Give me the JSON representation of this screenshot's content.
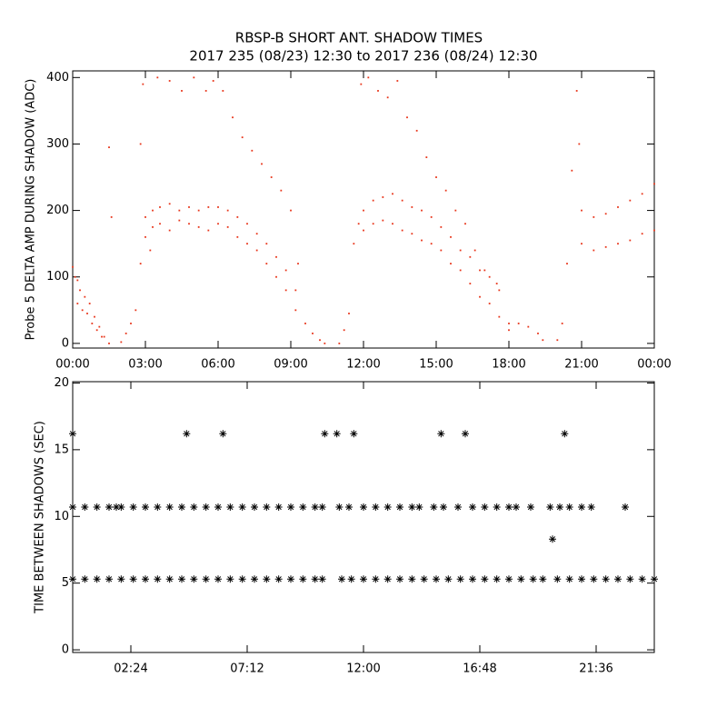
{
  "chart_data": [
    {
      "type": "scatter",
      "title": "RBSP-B SHORT ANT. SHADOW TIMES",
      "subtitle": "2017 235 (08/23) 12:30 to 2017 236 (08/24) 12:30",
      "ylabel": "Probe 5 DELTA AMP DURING SHADOW (ADC)",
      "color": "#e8351a",
      "xlim": [
        0,
        24
      ],
      "ylim": [
        -7,
        410
      ],
      "xticks": [
        {
          "value": 0,
          "label": "00:00"
        },
        {
          "value": 3,
          "label": "03:00"
        },
        {
          "value": 6,
          "label": "06:00"
        },
        {
          "value": 9,
          "label": "09:00"
        },
        {
          "value": 12,
          "label": "12:00"
        },
        {
          "value": 15,
          "label": "15:00"
        },
        {
          "value": 18,
          "label": "18:00"
        },
        {
          "value": 21,
          "label": "21:00"
        },
        {
          "value": 24,
          "label": "00:00"
        }
      ],
      "yticks": [
        0,
        100,
        200,
        300,
        400
      ],
      "x": [
        0,
        0.1,
        0.2,
        0.3,
        0.5,
        0.7,
        0.9,
        1.1,
        1.3,
        1.5,
        0.2,
        0.4,
        0.6,
        0.8,
        1.0,
        1.2,
        2.0,
        2.2,
        2.4,
        2.6,
        2.8,
        3.0,
        3.0,
        3.3,
        3.3,
        3.6,
        3.6,
        4.0,
        4.0,
        4.4,
        4.4,
        4.8,
        4.8,
        5.2,
        5.2,
        5.6,
        5.6,
        6.0,
        6.0,
        6.4,
        6.4,
        6.8,
        6.8,
        7.2,
        7.2,
        7.6,
        7.6,
        8.0,
        8.0,
        8.4,
        8.4,
        8.8,
        8.8,
        9.2,
        9.2,
        9.6,
        9.9,
        10.2,
        10.4,
        2.8,
        2.9,
        3.2,
        3.5,
        4.0,
        4.5,
        5.0,
        5.5,
        5.8,
        6.2,
        6.6,
        7.0,
        7.4,
        7.8,
        8.2,
        8.6,
        9.0,
        9.3,
        1.5,
        1.6,
        11.0,
        11.2,
        11.4,
        11.6,
        11.8,
        12.0,
        12.0,
        12.4,
        12.4,
        12.8,
        12.8,
        13.2,
        13.2,
        13.6,
        13.6,
        14.0,
        14.0,
        14.4,
        14.4,
        14.8,
        14.8,
        15.2,
        15.2,
        15.6,
        15.6,
        16.0,
        16.0,
        16.4,
        16.4,
        16.8,
        16.8,
        17.2,
        17.2,
        17.6,
        17.6,
        18.0,
        18.0,
        18.4,
        18.8,
        19.2,
        19.4,
        11.9,
        12.2,
        12.6,
        13.0,
        13.4,
        13.8,
        14.2,
        14.6,
        15.0,
        15.4,
        15.8,
        16.2,
        16.6,
        17.0,
        17.5,
        20.0,
        20.2,
        20.4,
        20.6,
        20.8,
        20.9,
        21.0,
        21.0,
        21.5,
        21.5,
        22.0,
        22.0,
        22.5,
        22.5,
        23.0,
        23.0,
        23.5,
        23.5,
        24.0,
        24.0
      ],
      "values": [
        115,
        100,
        95,
        80,
        70,
        60,
        40,
        25,
        10,
        0,
        60,
        50,
        45,
        30,
        20,
        10,
        2,
        15,
        30,
        50,
        120,
        160,
        190,
        175,
        200,
        180,
        205,
        170,
        210,
        185,
        200,
        180,
        205,
        175,
        200,
        170,
        205,
        180,
        205,
        175,
        200,
        160,
        190,
        150,
        180,
        140,
        165,
        120,
        150,
        100,
        130,
        80,
        110,
        50,
        80,
        30,
        15,
        5,
        0,
        300,
        390,
        140,
        400,
        395,
        380,
        400,
        380,
        395,
        380,
        340,
        310,
        290,
        270,
        250,
        230,
        200,
        120,
        295,
        190,
        0,
        20,
        45,
        150,
        180,
        170,
        200,
        180,
        215,
        185,
        220,
        180,
        225,
        170,
        215,
        165,
        205,
        155,
        200,
        150,
        190,
        140,
        175,
        120,
        160,
        110,
        140,
        90,
        130,
        70,
        110,
        60,
        100,
        40,
        80,
        30,
        20,
        30,
        25,
        15,
        5,
        390,
        400,
        380,
        370,
        395,
        340,
        320,
        280,
        250,
        230,
        200,
        180,
        140,
        110,
        90,
        5,
        30,
        120,
        260,
        380,
        300,
        200,
        150,
        140,
        190,
        145,
        195,
        150,
        205,
        155,
        215,
        165,
        225,
        170,
        240
      ]
    },
    {
      "type": "asterisk",
      "ylabel": "TIME BETWEEN SHADOWS (SEC)",
      "color": "#000000",
      "xlim": [
        0,
        24
      ],
      "ylim": [
        -0.2,
        20.1
      ],
      "xticks": [
        {
          "value": 2.4,
          "label": "02:24"
        },
        {
          "value": 7.2,
          "label": "07:12"
        },
        {
          "value": 12,
          "label": "12:00"
        },
        {
          "value": 16.8,
          "label": "16:48"
        },
        {
          "value": 21.6,
          "label": "21:36"
        }
      ],
      "yticks": [
        0,
        5,
        10,
        15,
        20
      ],
      "x": [
        0,
        0.5,
        1,
        1.5,
        2,
        2.5,
        3,
        3.5,
        4,
        4.5,
        5,
        5.5,
        6,
        6.5,
        7,
        7.5,
        8,
        8.5,
        9,
        9.5,
        10,
        10.3,
        11.1,
        11.5,
        12,
        12.5,
        13,
        13.5,
        14,
        14.5,
        15,
        15.5,
        16,
        16.5,
        17,
        17.5,
        18,
        18.5,
        19,
        19.4,
        20,
        20.5,
        21,
        21.5,
        22,
        22.5,
        23,
        23.5,
        24,
        0,
        0.5,
        1,
        1.5,
        1.8,
        2,
        2.5,
        3,
        3.5,
        4,
        4.5,
        5,
        5.5,
        6,
        6.5,
        7,
        7.5,
        8,
        8.5,
        9,
        9.5,
        10,
        10.3,
        11,
        11.4,
        12,
        12.5,
        13,
        13.5,
        14,
        14.3,
        14.9,
        15.3,
        15.9,
        16.5,
        17,
        17.5,
        18,
        18.3,
        18.9,
        19.7,
        20.1,
        20.5,
        21,
        21.4,
        22.8,
        0,
        4.7,
        6.2,
        10.4,
        10.9,
        11.6,
        15.2,
        16.2,
        20.3,
        19.8
      ],
      "values": [
        5.3,
        5.3,
        5.3,
        5.3,
        5.3,
        5.3,
        5.3,
        5.3,
        5.3,
        5.3,
        5.3,
        5.3,
        5.3,
        5.3,
        5.3,
        5.3,
        5.3,
        5.3,
        5.3,
        5.3,
        5.3,
        5.3,
        5.3,
        5.3,
        5.3,
        5.3,
        5.3,
        5.3,
        5.3,
        5.3,
        5.3,
        5.3,
        5.3,
        5.3,
        5.3,
        5.3,
        5.3,
        5.3,
        5.3,
        5.3,
        5.3,
        5.3,
        5.3,
        5.3,
        5.3,
        5.3,
        5.3,
        5.3,
        5.3,
        10.7,
        10.7,
        10.7,
        10.7,
        10.7,
        10.7,
        10.7,
        10.7,
        10.7,
        10.7,
        10.7,
        10.7,
        10.7,
        10.7,
        10.7,
        10.7,
        10.7,
        10.7,
        10.7,
        10.7,
        10.7,
        10.7,
        10.7,
        10.7,
        10.7,
        10.7,
        10.7,
        10.7,
        10.7,
        10.7,
        10.7,
        10.7,
        10.7,
        10.7,
        10.7,
        10.7,
        10.7,
        10.7,
        10.7,
        10.7,
        10.7,
        10.7,
        10.7,
        10.7,
        10.7,
        10.7,
        16.2,
        16.2,
        16.2,
        16.2,
        16.2,
        16.2,
        16.2,
        16.2,
        16.2,
        8.3
      ]
    }
  ]
}
